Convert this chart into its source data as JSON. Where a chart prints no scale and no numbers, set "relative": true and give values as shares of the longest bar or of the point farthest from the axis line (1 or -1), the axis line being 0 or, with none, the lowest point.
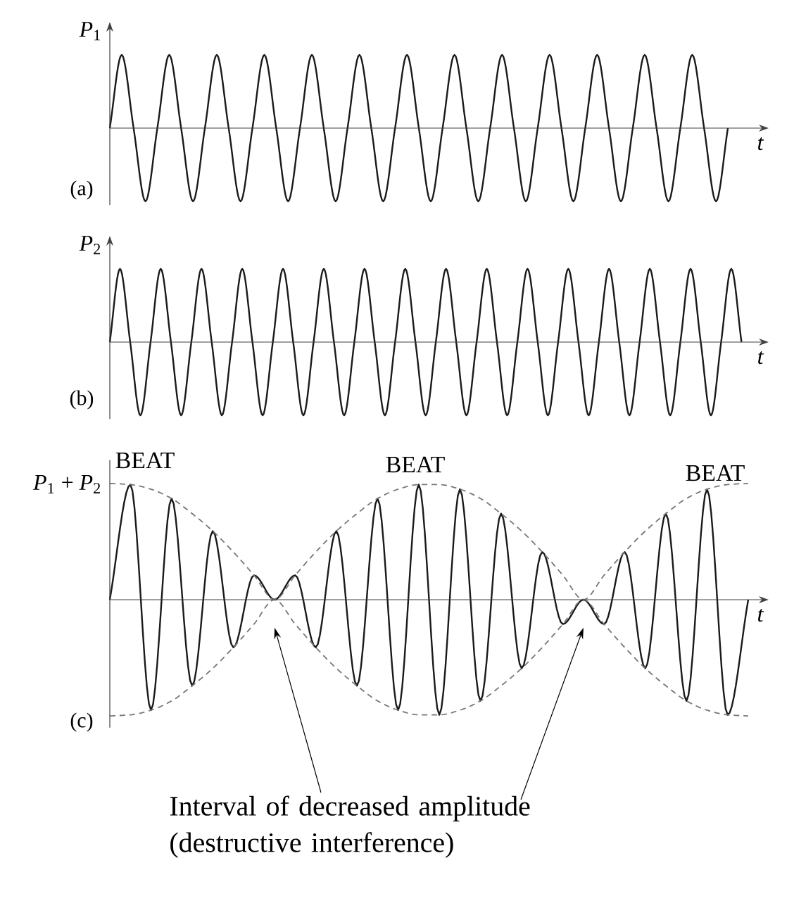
{
  "chart_data": [
    {
      "type": "line",
      "relative": true,
      "ylabel": "*P*$_{1}$",
      "xlabel": "*t*",
      "tick_labels": false,
      "annotations": [
        "(a)"
      ],
      "categories": [
        null,
        null,
        null,
        null,
        null,
        null,
        null,
        null,
        null,
        null,
        null,
        null,
        null,
        null,
        null,
        null,
        null,
        null,
        null,
        null,
        null,
        null,
        null,
        null,
        null,
        null,
        null,
        null,
        null,
        null,
        null,
        null,
        null,
        null,
        null,
        null,
        null,
        null,
        null,
        null,
        null,
        null,
        null,
        null,
        null,
        null,
        null,
        null,
        null,
        null,
        null,
        null,
        null
      ],
      "series": [
        {
          "color": "#1a1a1a",
          "line_style": "solid",
          "values": [
            0,
            1,
            0,
            -1,
            0,
            1,
            0,
            -1,
            0,
            1,
            0,
            -1,
            0,
            1,
            0,
            -1,
            0,
            1,
            0,
            -1,
            0,
            1,
            0,
            -1,
            0,
            1,
            0,
            -1,
            0,
            1,
            0,
            -1,
            0,
            1,
            0,
            -1,
            0,
            1,
            0,
            -1,
            0,
            1,
            0,
            -1,
            0,
            1,
            0,
            -1,
            0,
            1,
            0,
            -1,
            0
          ]
        }
      ]
    },
    {
      "type": "line",
      "relative": true,
      "ylabel": "*P*$_{2}$",
      "xlabel": "*t*",
      "tick_labels": false,
      "annotations": [
        "(b)"
      ],
      "categories": [
        null,
        null,
        null,
        null,
        null,
        null,
        null,
        null,
        null,
        null,
        null,
        null,
        null,
        null,
        null,
        null,
        null,
        null,
        null,
        null,
        null,
        null,
        null,
        null,
        null,
        null,
        null,
        null,
        null,
        null,
        null,
        null,
        null,
        null,
        null,
        null,
        null,
        null,
        null,
        null,
        null,
        null,
        null,
        null,
        null,
        null,
        null,
        null,
        null,
        null,
        null,
        null,
        null,
        null,
        null,
        null,
        null,
        null,
        null,
        null,
        null,
        null,
        null
      ],
      "series": [
        {
          "color": "#1a1a1a",
          "line_style": "solid",
          "values": [
            0,
            1,
            0,
            -1,
            0,
            1,
            0,
            -1,
            0,
            1,
            0,
            -1,
            0,
            1,
            0,
            -1,
            0,
            1,
            0,
            -1,
            0,
            1,
            0,
            -1,
            0,
            1,
            0,
            -1,
            0,
            1,
            0,
            -1,
            0,
            1,
            0,
            -1,
            0,
            1,
            0,
            -1,
            0,
            1,
            0,
            -1,
            0,
            1,
            0,
            -1,
            0,
            1,
            0,
            -1,
            0,
            1,
            0,
            -1,
            0,
            1,
            0,
            -1,
            0,
            1,
            0
          ]
        }
      ]
    },
    {
      "type": "line",
      "relative": true,
      "ylabel": "*P*$_{1}$ + *P*$_{2}$",
      "xlabel": "*t*",
      "tick_labels": false,
      "annotations": [
        "BEAT",
        "BEAT",
        "BEAT",
        "(c)",
        "Interval of decreased amplitude (destructive interference)"
      ],
      "categories": [
        null,
        null,
        null,
        null,
        null,
        null,
        null,
        null,
        null,
        null,
        null,
        null,
        null,
        null,
        null,
        null,
        null,
        null,
        null,
        null,
        null,
        null,
        null,
        null,
        null,
        null,
        null,
        null,
        null,
        null,
        null,
        null
      ],
      "series": [
        {
          "color": "#1a1a1a",
          "line_style": "solid",
          "values": [
            0,
            0.99,
            -0.95,
            0.87,
            -0.74,
            0.59,
            -0.41,
            0.21,
            0,
            0.21,
            -0.41,
            0.59,
            -0.74,
            0.87,
            -0.95,
            0.99,
            -0.99,
            0.95,
            -0.87,
            0.74,
            -0.59,
            0.41,
            -0.21,
            0,
            -0.21,
            0.41,
            -0.59,
            0.74,
            -0.87,
            0.95,
            -0.99,
            0
          ]
        },
        {
          "color": "#777777",
          "line_style": "dashed",
          "values": [
            1,
            0.99,
            0.95,
            0.87,
            0.74,
            0.59,
            0.41,
            0.21,
            0,
            0.21,
            0.41,
            0.59,
            0.74,
            0.87,
            0.95,
            0.99,
            0.99,
            0.95,
            0.87,
            0.74,
            0.59,
            0.41,
            0.21,
            0,
            0.21,
            0.41,
            0.59,
            0.74,
            0.87,
            0.95,
            0.99,
            1
          ]
        },
        {
          "color": "#777777",
          "line_style": "dashed",
          "values": [
            -1,
            -0.99,
            -0.95,
            -0.87,
            -0.74,
            -0.59,
            -0.41,
            -0.21,
            0,
            -0.21,
            -0.41,
            -0.59,
            -0.74,
            -0.87,
            -0.95,
            -0.99,
            -0.99,
            -0.95,
            -0.87,
            -0.74,
            -0.59,
            -0.41,
            -0.21,
            0,
            -0.21,
            -0.41,
            -0.59,
            -0.74,
            -0.87,
            -0.95,
            -0.99,
            -1
          ]
        }
      ]
    }
  ]
}
